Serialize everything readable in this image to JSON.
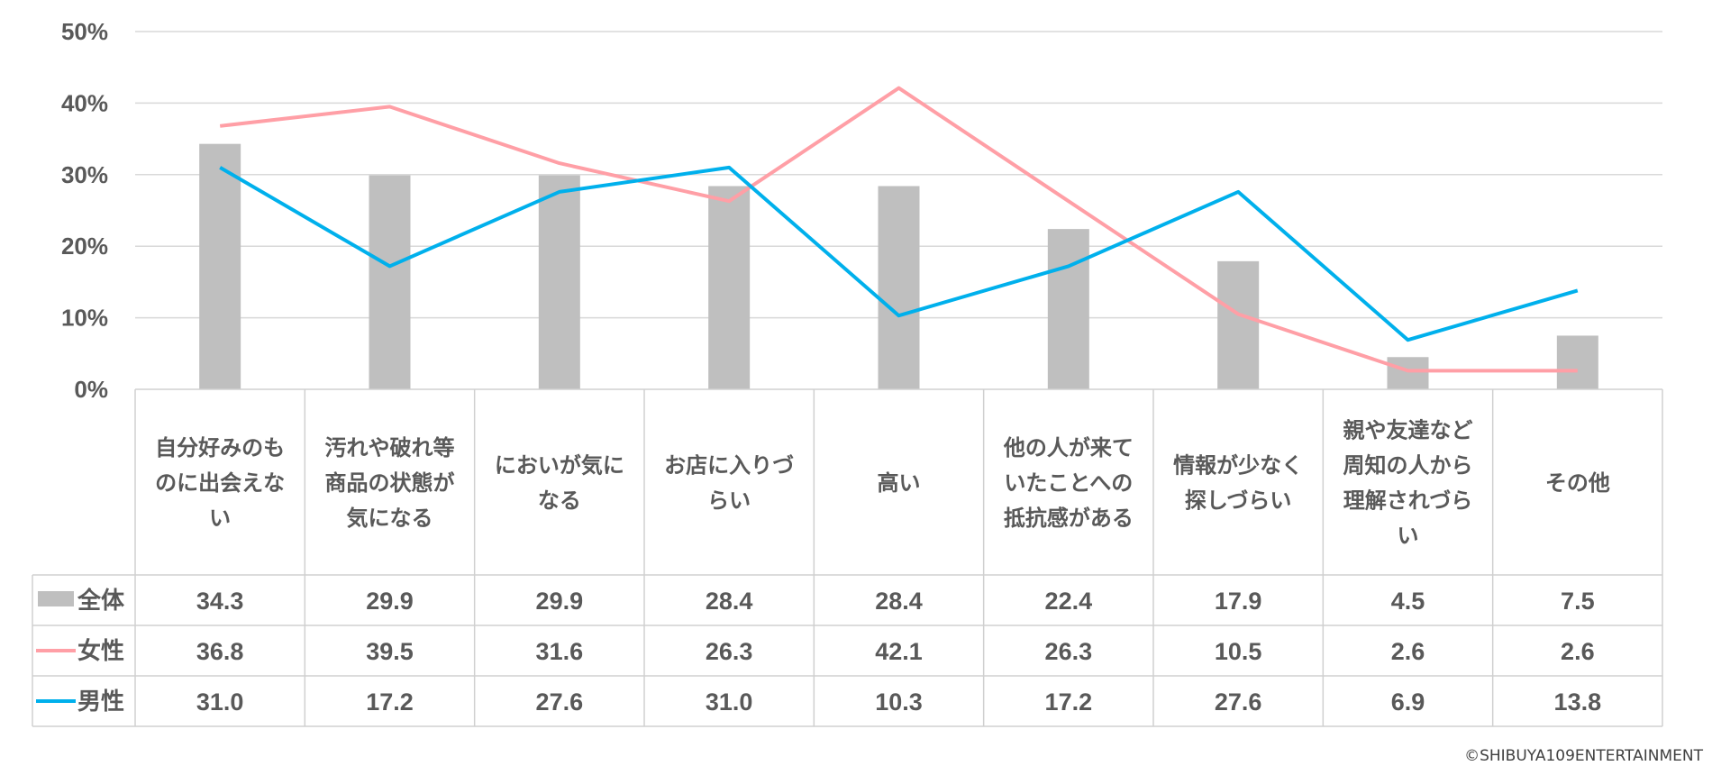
{
  "colors": {
    "bar": "#bfbfbf",
    "female": "#ff9fa6",
    "male": "#00b0ec",
    "grid": "#d9d9d9",
    "text": "#595959"
  },
  "chart_data": {
    "type": "bar",
    "categories": [
      "自分好みのものに出会えない",
      "汚れや破れ等商品の状態が気になる",
      "においが気になる",
      "お店に入りづらい",
      "高い",
      "他の人が来ていたことへの抵抗感がある",
      "情報が少なく探しづらい",
      "親や友達など周知の人から理解されづらい",
      "その他"
    ],
    "category_lines": [
      [
        "自分好みのも",
        "のに出会えな",
        "い"
      ],
      [
        "汚れや破れ等",
        "商品の状態が",
        "気になる"
      ],
      [
        "においが気に",
        "なる"
      ],
      [
        "お店に入りづ",
        "らい"
      ],
      [
        "高い"
      ],
      [
        "他の人が来て",
        "いたことへの",
        "抵抗感がある"
      ],
      [
        "情報が少なく",
        "探しづらい"
      ],
      [
        "親や友達など",
        "周知の人から",
        "理解されづら",
        "い"
      ],
      [
        "その他"
      ]
    ],
    "series": [
      {
        "name": "全体",
        "kind": "bar",
        "values": [
          34.3,
          29.9,
          29.9,
          28.4,
          28.4,
          22.4,
          17.9,
          4.5,
          7.5
        ]
      },
      {
        "name": "女性",
        "kind": "line",
        "values": [
          36.8,
          39.5,
          31.6,
          26.3,
          42.1,
          26.3,
          10.5,
          2.6,
          2.6
        ]
      },
      {
        "name": "男性",
        "kind": "line",
        "values": [
          31.0,
          17.2,
          27.6,
          31.0,
          10.3,
          17.2,
          27.6,
          6.9,
          13.8
        ]
      }
    ],
    "ylim": [
      0,
      50
    ],
    "yticks": [
      "0%",
      "10%",
      "20%",
      "30%",
      "40%",
      "50%"
    ],
    "grid": true,
    "legend": "data-table"
  },
  "copyright": "©SHIBUYA109ENTERTAINMENT"
}
